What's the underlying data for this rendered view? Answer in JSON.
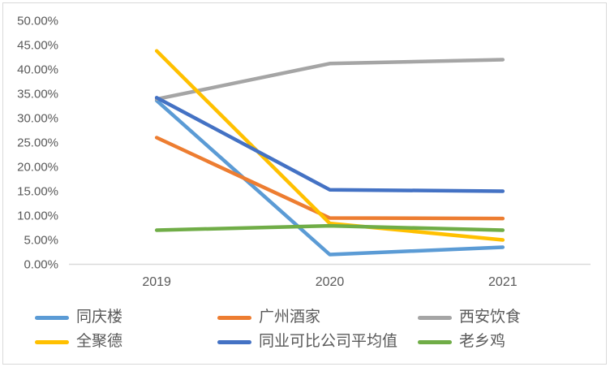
{
  "chart_data": {
    "type": "line",
    "title": "",
    "x": [
      "2019",
      "2020",
      "2021"
    ],
    "series": [
      {
        "name": "同庆楼",
        "color": "#5B9BD5",
        "values": [
          33.6,
          2.0,
          3.5
        ]
      },
      {
        "name": "广州酒家",
        "color": "#ED7D31",
        "values": [
          26.0,
          9.5,
          9.4
        ]
      },
      {
        "name": "西安饮食",
        "color": "#A5A5A5",
        "values": [
          33.9,
          41.2,
          42.0
        ]
      },
      {
        "name": "全聚德",
        "color": "#FFC000",
        "values": [
          43.8,
          8.4,
          5.0
        ]
      },
      {
        "name": "同业可比公司平均值",
        "color": "#4472C4",
        "values": [
          34.2,
          15.3,
          15.0
        ]
      },
      {
        "name": "老乡鸡",
        "color": "#70AD47",
        "values": [
          7.0,
          7.9,
          7.0
        ]
      }
    ],
    "ylim": [
      0,
      50
    ],
    "y_tick_step": 5,
    "y_tick_labels": [
      "0.00%",
      "5.00%",
      "10.00%",
      "15.00%",
      "20.00%",
      "25.00%",
      "30.00%",
      "35.00%",
      "40.00%",
      "45.00%",
      "50.00%"
    ],
    "x_tick_labels": [
      "2019",
      "2020",
      "2021"
    ],
    "grid": false,
    "legend_position": "bottom",
    "legend_rows": [
      [
        "同庆楼",
        "广州酒家",
        "西安饮食"
      ],
      [
        "全聚德",
        "同业可比公司平均值",
        "老乡鸡"
      ]
    ]
  },
  "style": {
    "background": "#FFFFFF",
    "border_color": "#D9D9D9",
    "axis_line_color": "#D9D9D9",
    "tick_text_color": "#595959",
    "legend_text_color": "#595959"
  }
}
